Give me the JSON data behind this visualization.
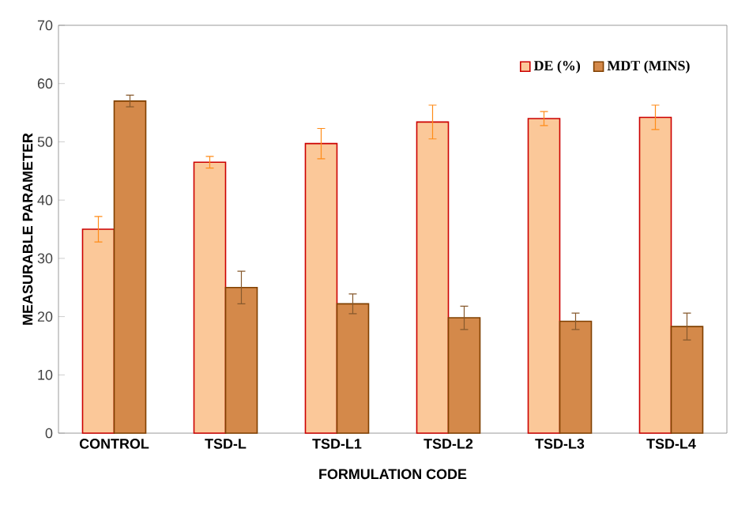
{
  "chart_data": {
    "type": "bar",
    "xlabel": "FORMULATION CODE",
    "ylabel": "MEASURABLE PARAMETER",
    "categories": [
      "CONTROL",
      "TSD-L",
      "TSD-L1",
      "TSD-L2",
      "TSD-L3",
      "TSD-L4"
    ],
    "series": [
      {
        "name": "DE (%)",
        "color": "#fbc899",
        "values": [
          35,
          46.5,
          49.7,
          53.4,
          54,
          54.2
        ],
        "errors": [
          2.2,
          1,
          2.6,
          2.9,
          1.2,
          2.1
        ]
      },
      {
        "name": "MDT (MINS)",
        "color": "#d4894a",
        "values": [
          57,
          25,
          22.2,
          19.8,
          19.2,
          18.3
        ],
        "errors": [
          1,
          2.8,
          1.7,
          2,
          1.4,
          2.3
        ]
      }
    ],
    "ylim": [
      0,
      70
    ],
    "yticks": [
      0,
      10,
      20,
      30,
      40,
      50,
      60,
      70
    ],
    "grid": false,
    "legend": "top right"
  }
}
